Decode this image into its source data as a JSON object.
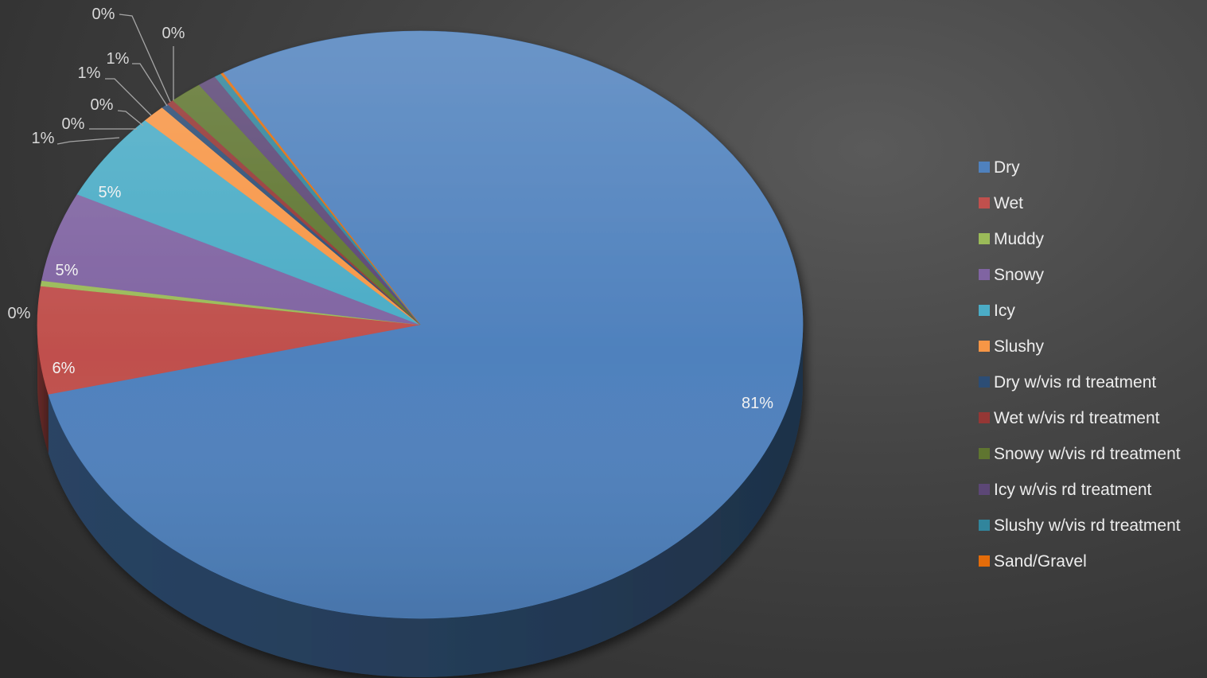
{
  "chart_data": {
    "type": "pie",
    "title": "",
    "legend_position": "right",
    "slices": [
      {
        "name": "Dry",
        "value": 81,
        "label": "81%",
        "color": "#4f81bd"
      },
      {
        "name": "Wet",
        "value": 6,
        "label": "6%",
        "color": "#c0504d"
      },
      {
        "name": "Muddy",
        "value": 0.3,
        "label": "0%",
        "color": "#9bbb59"
      },
      {
        "name": "Snowy",
        "value": 5,
        "label": "5%",
        "color": "#8064a2"
      },
      {
        "name": "Icy",
        "value": 5,
        "label": "5%",
        "color": "#4bacc6"
      },
      {
        "name": "Slushy",
        "value": 1,
        "label": "1%",
        "color": "#f79646"
      },
      {
        "name": "Dry w/vis rd treatment",
        "value": 0.3,
        "label": "0%",
        "color": "#2c4d75"
      },
      {
        "name": "Wet w/vis rd treatment",
        "value": 0.3,
        "label": "0%",
        "color": "#953735"
      },
      {
        "name": "Snowy w/vis rd treatment",
        "value": 1.4,
        "label": "1%",
        "color": "#5f7530"
      },
      {
        "name": "Icy w/vis rd treatment",
        "value": 0.8,
        "label": "1%",
        "color": "#5c4776"
      },
      {
        "name": "Slushy w/vis rd treatment",
        "value": 0.3,
        "label": "0%",
        "color": "#31859c"
      },
      {
        "name": "Sand/Gravel",
        "value": 0.1,
        "label": "0%",
        "color": "#e46c0a"
      }
    ]
  }
}
